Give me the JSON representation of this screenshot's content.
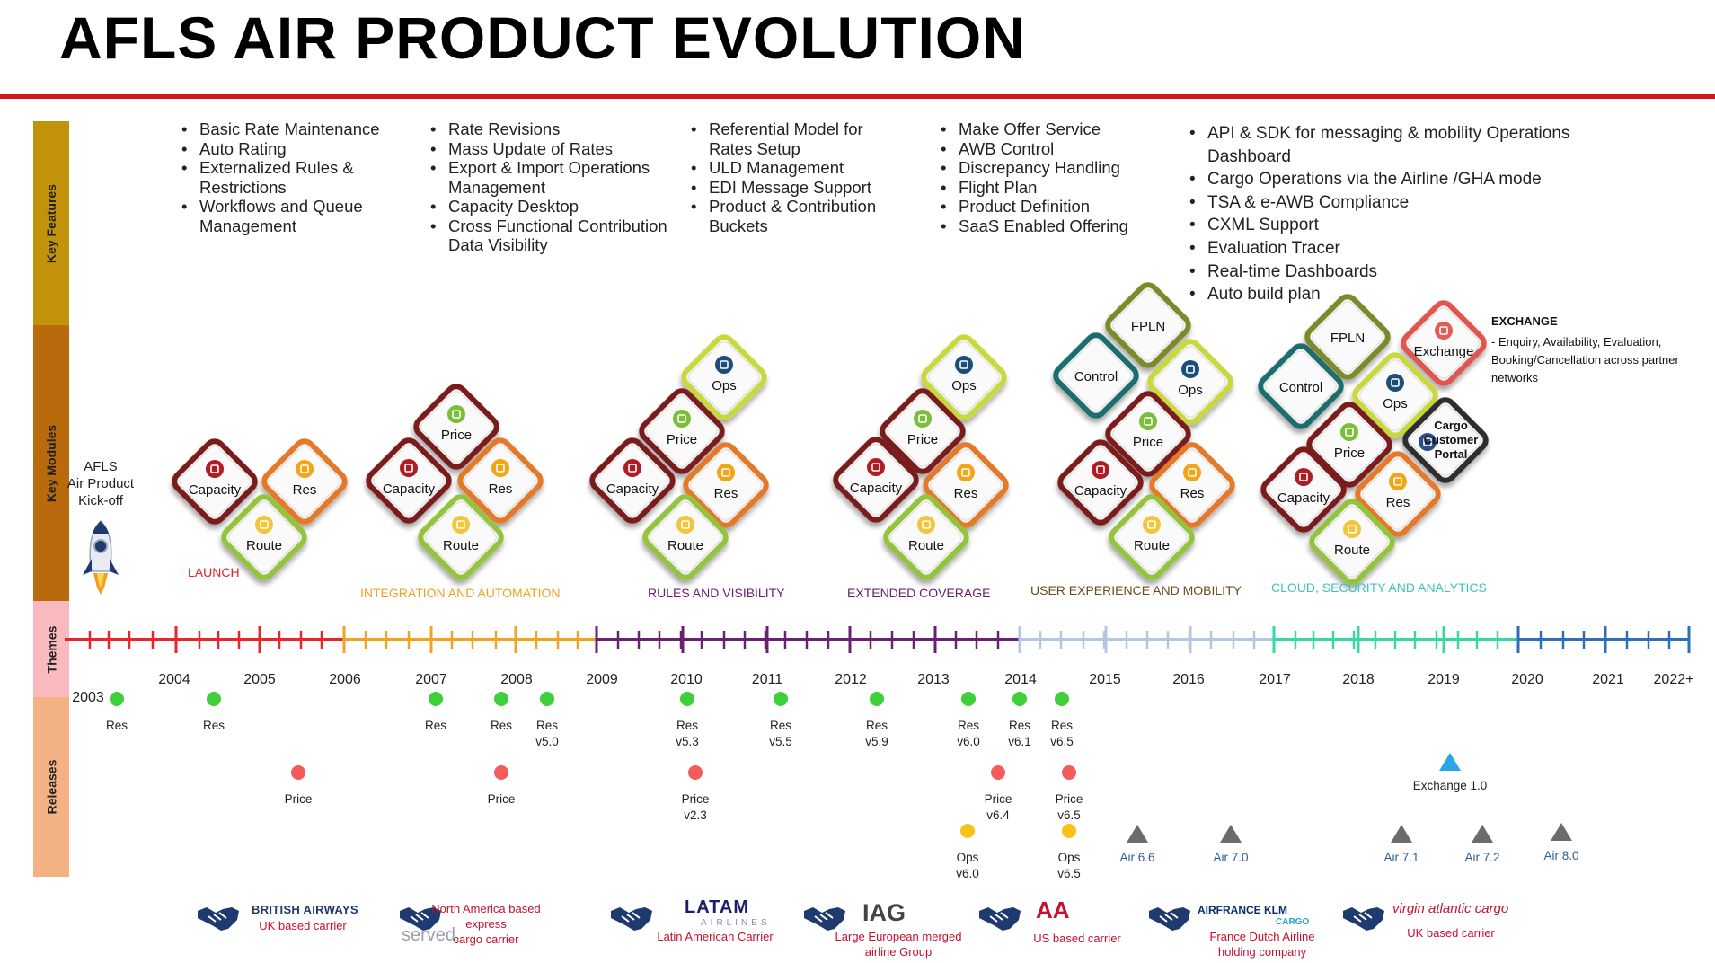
{
  "title": "AFLS AIR PRODUCT EVOLUTION",
  "bands": {
    "features": "Key Features",
    "modules": "Key Modules",
    "themes": "Themes",
    "releases": "Releases"
  },
  "colors": {
    "accent_red": "#d0181f",
    "band_features": "#c2930a",
    "band_modules": "#b86a0c",
    "band_themes": "#f8b9bf",
    "band_releases": "#f4b183",
    "release_res": "#3fcf3a",
    "release_price": "#f45b5b",
    "release_ops": "#f8c21a",
    "release_exchange": "#2aa5e8",
    "release_air": "#6b6b6b"
  },
  "feature_columns": [
    {
      "items": [
        "Basic Rate Maintenance",
        "Auto Rating",
        "Externalized Rules & Restrictions",
        "Workflows and Queue Management"
      ]
    },
    {
      "items": [
        "Rate Revisions",
        "Mass Update of Rates",
        "Export & Import Operations Management",
        "Capacity Desktop",
        "Cross Functional Contribution Data Visibility"
      ]
    },
    {
      "items": [
        "Referential Model for Rates Setup",
        "ULD Management",
        "EDI Message Support",
        "Product & Contribution Buckets"
      ]
    },
    {
      "items": [
        "Make Offer Service",
        "AWB Control",
        "Discrepancy Handling",
        "Flight Plan",
        "Product Definition",
        "SaaS Enabled Offering"
      ]
    },
    {
      "items": [
        "API & SDK for messaging & mobility Operations Dashboard",
        "Cargo Operations via the Airline /GHA mode",
        "TSA & e-AWB Compliance",
        "CXML Support",
        "Evaluation Tracer",
        "Real-time Dashboards",
        "Auto build plan"
      ]
    }
  ],
  "kickoff": {
    "line1": "AFLS",
    "line2": "Air Product",
    "line3": "Kick-off",
    "icon": "rocket-icon"
  },
  "module_names": {
    "capacity": "Capacity",
    "res": "Res",
    "route": "Route",
    "price": "Price",
    "ops": "Ops",
    "control": "Control",
    "fpln": "FPLN",
    "exchange": "Exchange",
    "portal": "Cargo Customer Portal"
  },
  "module_icons": {
    "capacity": "clipboard-icon",
    "res": "person-icon",
    "route": "route-icon",
    "price": "chart-icon",
    "ops": "forklift-icon",
    "exchange": "exchange-icon",
    "portal": "customer-icon"
  },
  "themes": [
    {
      "label": "LAUNCH",
      "color": "#d9232d"
    },
    {
      "label": "INTEGRATION AND AUTOMATION",
      "color": "#f0a020"
    },
    {
      "label": "RULES AND VISIBILITY",
      "color": "#6a2070"
    },
    {
      "label": "EXTENDED COVERAGE",
      "color": "#6a2070"
    },
    {
      "label": "USER EXPERIENCE AND MOBILITY",
      "color": "#6b4c1a"
    },
    {
      "label": "CLOUD, SECURITY AND ANALYTICS",
      "color": "#3cc6b0"
    }
  ],
  "timeline_segments": [
    {
      "color": "#e8242c"
    },
    {
      "color": "#f0a424"
    },
    {
      "color": "#6a2170"
    },
    {
      "color": "#b3c6e6"
    },
    {
      "color": "#38d8a0"
    },
    {
      "color": "#2f6fb6"
    }
  ],
  "years": [
    "2003",
    "2004",
    "2005",
    "2006",
    "2007",
    "2008",
    "2009",
    "2010",
    "2011",
    "2012",
    "2013",
    "2014",
    "2015",
    "2016",
    "2017",
    "2018",
    "2019",
    "2020",
    "2021",
    "2022+"
  ],
  "releases": {
    "res": [
      {
        "label": "Res"
      },
      {
        "label": "Res"
      },
      {
        "label": "Res"
      },
      {
        "label": "Res"
      },
      {
        "label": "Res\nv5.0"
      },
      {
        "label": "Res\nv5.3"
      },
      {
        "label": "Res\nv5.5"
      },
      {
        "label": "Res\nv5.9"
      },
      {
        "label": "Res\nv6.0"
      },
      {
        "label": "Res\nv6.1"
      },
      {
        "label": "Res\nv6.5"
      }
    ],
    "price": [
      {
        "label": "Price"
      },
      {
        "label": "Price"
      },
      {
        "label": "Price\nv2.3"
      },
      {
        "label": "Price\nv6.4"
      },
      {
        "label": "Price\nv6.5"
      }
    ],
    "ops": [
      {
        "label": "Ops\nv6.0"
      },
      {
        "label": "Ops\nv6.5"
      }
    ],
    "exchange": [
      {
        "label": "Exchange 1.0"
      }
    ],
    "air": [
      {
        "label": "Air 6.6"
      },
      {
        "label": "Air 7.0"
      },
      {
        "label": "Air 7.1"
      },
      {
        "label": "Air 7.2"
      },
      {
        "label": "Air 8.0"
      }
    ]
  },
  "exchange_note": {
    "heading": "EXCHANGE",
    "text": "-  Enquiry, Availability, Evaluation, Booking/Cancellation across partner networks"
  },
  "partners": [
    {
      "brand": "BRITISH AIRWAYS",
      "label": "UK based carrier",
      "icon": "handshake-icon"
    },
    {
      "brand": "served.",
      "label": "North America based\nexpress\ncargo carrier",
      "icon": "handshake-icon"
    },
    {
      "brand": "LATAM",
      "brand_sub": "AIRLINES",
      "label": "Latin American Carrier",
      "icon": "handshake-icon"
    },
    {
      "brand": "IAG",
      "label": "Large European merged\nairline Group",
      "icon": "handshake-icon"
    },
    {
      "brand": "AA",
      "label": "US based carrier",
      "icon": "handshake-icon"
    },
    {
      "brand": "AIRFRANCE KLM",
      "brand_sub": "CARGO",
      "label": "France Dutch Airline\nholding company",
      "icon": "handshake-icon"
    },
    {
      "brand": "virgin atlantic cargo",
      "label": "UK based carrier",
      "icon": "handshake-icon"
    }
  ]
}
